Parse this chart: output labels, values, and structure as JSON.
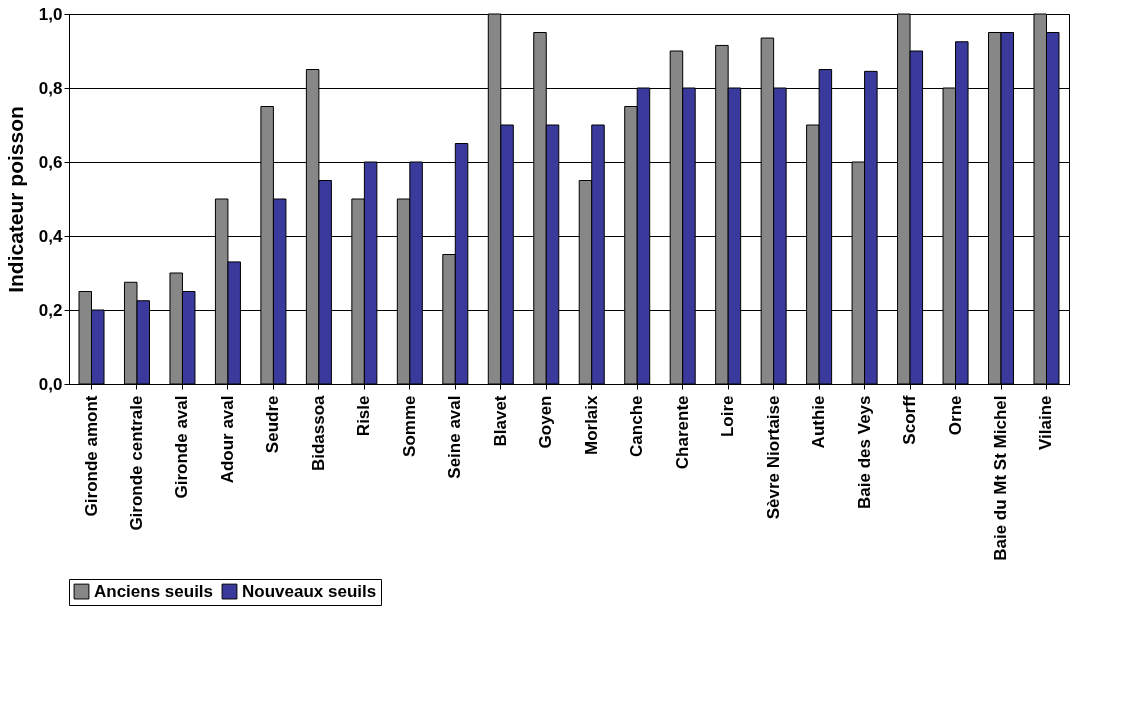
{
  "chart_data": {
    "type": "bar",
    "ylabel": "Indicateur poisson",
    "categories": [
      "Gironde amont",
      "Gironde centrale",
      "Gironde aval",
      "Adour aval",
      "Seudre",
      "Bidassoa",
      "Risle",
      "Somme",
      "Seine aval",
      "Blavet",
      "Goyen",
      "Morlaix",
      "Canche",
      "Charente",
      "Loire",
      "Sèvre Niortaise",
      "Authie",
      "Baie des Veys",
      "Scorff",
      "Orne",
      "Baie du Mt St Michel",
      "Vilaine"
    ],
    "series": [
      {
        "name": "Anciens seuils",
        "color": "#878787",
        "values": [
          0.25,
          0.275,
          0.3,
          0.5,
          0.75,
          0.85,
          0.5,
          0.5,
          0.35,
          1.0,
          0.95,
          0.55,
          0.75,
          0.9,
          0.915,
          0.935,
          0.7,
          0.6,
          1.0,
          0.8,
          0.95,
          1.0
        ]
      },
      {
        "name": "Nouveaux seuils",
        "color": "#3a3a9c",
        "values": [
          0.2,
          0.225,
          0.25,
          0.33,
          0.5,
          0.55,
          0.6,
          0.6,
          0.65,
          0.7,
          0.7,
          0.7,
          0.8,
          0.8,
          0.8,
          0.8,
          0.85,
          0.845,
          0.9,
          0.925,
          0.95,
          0.95
        ]
      }
    ],
    "ylim": [
      0,
      1
    ],
    "yticks": [
      {
        "value": 0,
        "label": "0,0"
      },
      {
        "value": 0.2,
        "label": "0,2"
      },
      {
        "value": 0.4,
        "label": "0,4"
      },
      {
        "value": 0.6,
        "label": "0,6"
      },
      {
        "value": 0.8,
        "label": "0,8"
      },
      {
        "value": 1,
        "label": "1,0"
      }
    ],
    "grid": "y",
    "legend": "bottom"
  }
}
